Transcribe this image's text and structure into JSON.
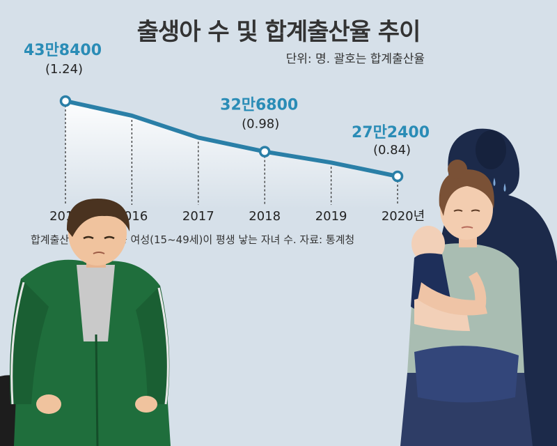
{
  "title": "출생아 수 및 합계출산율 추이",
  "unit_note": "단위: 명. 괄호는 합계출산율",
  "footnote": "합계출산율: 가임 가능 여성(15~49세)이 평생 낳는 자녀 수. 자료: 통계청",
  "colors": {
    "line": "#2a7fa7",
    "value_text": "#2a8cb6",
    "background": "#d6e0e9"
  },
  "chart_data": {
    "type": "line",
    "title": "출생아 수 및 합계출산율 추이",
    "categories": [
      "2015",
      "2016",
      "2017",
      "2018",
      "2019",
      "2020년"
    ],
    "series": [
      {
        "values": [
          438400,
          406200,
          357800,
          326800,
          302700,
          272400
        ]
      }
    ],
    "value_labels": [
      {
        "category": "2015",
        "label": "43만8400",
        "rate": "(1.24)"
      },
      {
        "category": "2018",
        "label": "32만6800",
        "rate": "(0.98)"
      },
      {
        "category": "2020년",
        "label": "27만2400",
        "rate": "(0.84)"
      }
    ],
    "ylim": [
      180000,
      480000
    ],
    "grid": false,
    "legend": "none"
  }
}
